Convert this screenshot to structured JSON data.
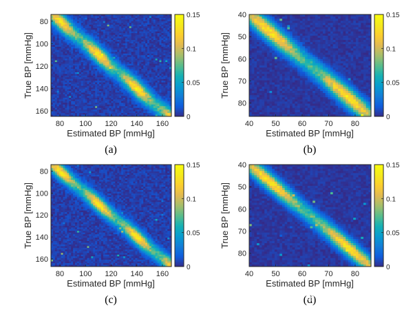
{
  "figure": {
    "watermark": "知乎 @巴川荚荚生"
  },
  "chart_data": [
    {
      "id": "a",
      "type": "heatmap",
      "panel_label": "(a)",
      "xlabel": "Estimated BP [mmHg]",
      "ylabel": "True BP [mmHg]",
      "xlim": [
        73,
        167
      ],
      "ylim": [
        74,
        165
      ],
      "xticks": [
        80,
        100,
        120,
        140,
        160
      ],
      "yticks": [
        80,
        100,
        120,
        140,
        160
      ],
      "xtick_labels": [
        "80",
        "100",
        "120",
        "140",
        "160"
      ],
      "ytick_labels": [
        "80",
        "100",
        "120",
        "140",
        "160"
      ],
      "bins": [
        60,
        60
      ],
      "diag_width": 5.5,
      "noise": 0.012,
      "seed": 11,
      "colorbar": {
        "range": [
          0,
          0.15
        ],
        "ticks": [
          0,
          0.05,
          0.1,
          0.15
        ],
        "tick_labels": [
          "0",
          "0.05",
          "0.1",
          "0.15"
        ],
        "colormap": "parula"
      }
    },
    {
      "id": "b",
      "type": "heatmap",
      "panel_label": "(b)",
      "xlabel": "Estimated BP [mmHg]",
      "ylabel": "True BP [mmHg]",
      "xlim": [
        40,
        86
      ],
      "ylim": [
        40,
        86
      ],
      "xticks": [
        40,
        50,
        60,
        70,
        80
      ],
      "yticks": [
        40,
        50,
        60,
        70,
        80
      ],
      "xtick_labels": [
        "40",
        "50",
        "60",
        "70",
        "80"
      ],
      "ytick_labels": [
        "40",
        "50",
        "60",
        "70",
        "80"
      ],
      "bins": [
        48,
        48
      ],
      "diag_width": 3.2,
      "noise": 0.008,
      "seed": 23,
      "colorbar": {
        "range": [
          0,
          0.15
        ],
        "ticks": [
          0,
          0.05,
          0.1,
          0.15
        ],
        "tick_labels": [
          "0",
          "0.05",
          "0.1",
          "0.15"
        ],
        "colormap": "parula"
      }
    },
    {
      "id": "c",
      "type": "heatmap",
      "panel_label": "(c)",
      "xlabel": "Estimated BP [mmHg]",
      "ylabel": "True BP [mmHg]",
      "xlim": [
        73,
        167
      ],
      "ylim": [
        74,
        167
      ],
      "xticks": [
        80,
        100,
        120,
        140,
        160
      ],
      "yticks": [
        80,
        100,
        120,
        140,
        160
      ],
      "xtick_labels": [
        "80",
        "100",
        "120",
        "140",
        "160"
      ],
      "ytick_labels": [
        "80",
        "100",
        "120",
        "140",
        "160"
      ],
      "bins": [
        60,
        60
      ],
      "diag_width": 5.0,
      "noise": 0.012,
      "seed": 37,
      "colorbar": {
        "range": [
          0,
          0.15
        ],
        "ticks": [
          0,
          0.05,
          0.1,
          0.15
        ],
        "tick_labels": [
          "0",
          "0.05",
          "0.1",
          "0.15"
        ],
        "colormap": "parula"
      }
    },
    {
      "id": "d",
      "type": "heatmap",
      "panel_label": "(d)",
      "xlabel": "Estimated BP [mmHg]",
      "ylabel": "True BP [mmHg]",
      "xlim": [
        40,
        86
      ],
      "ylim": [
        40,
        86
      ],
      "xticks": [
        40,
        50,
        60,
        70,
        80
      ],
      "yticks": [
        40,
        50,
        60,
        70,
        80
      ],
      "xtick_labels": [
        "40",
        "50",
        "60",
        "70",
        "80"
      ],
      "ytick_labels": [
        "40",
        "50",
        "60",
        "70",
        "80"
      ],
      "bins": [
        48,
        48
      ],
      "diag_width": 2.8,
      "noise": 0.008,
      "seed": 53,
      "colorbar": {
        "range": [
          0,
          0.15
        ],
        "ticks": [
          0,
          0.05,
          0.1,
          0.15
        ],
        "tick_labels": [
          "0",
          "0.05",
          "0.1",
          "0.15"
        ],
        "colormap": "parula"
      }
    }
  ]
}
